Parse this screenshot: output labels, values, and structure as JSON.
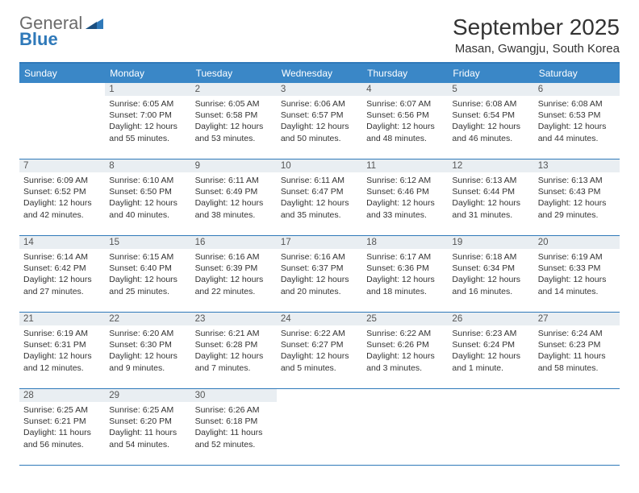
{
  "brand": {
    "word1": "General",
    "word2": "Blue"
  },
  "title": "September 2025",
  "location": "Masan, Gwangju, South Korea",
  "day_labels": [
    "Sunday",
    "Monday",
    "Tuesday",
    "Wednesday",
    "Thursday",
    "Friday",
    "Saturday"
  ],
  "colors": {
    "header_bg": "#3a87c7",
    "accent": "#2f79b9",
    "daynum_bg": "#e9eef2",
    "text": "#333333",
    "logo_gray": "#6b6b6b"
  },
  "font": {
    "title_size": 28,
    "location_size": 15,
    "header_size": 12,
    "body_size": 10.5
  },
  "layout": {
    "columns": 7,
    "start_offset": 1
  },
  "days": [
    {
      "n": "1",
      "sunrise": "Sunrise: 6:05 AM",
      "sunset": "Sunset: 7:00 PM",
      "daylight": "Daylight: 12 hours and 55 minutes."
    },
    {
      "n": "2",
      "sunrise": "Sunrise: 6:05 AM",
      "sunset": "Sunset: 6:58 PM",
      "daylight": "Daylight: 12 hours and 53 minutes."
    },
    {
      "n": "3",
      "sunrise": "Sunrise: 6:06 AM",
      "sunset": "Sunset: 6:57 PM",
      "daylight": "Daylight: 12 hours and 50 minutes."
    },
    {
      "n": "4",
      "sunrise": "Sunrise: 6:07 AM",
      "sunset": "Sunset: 6:56 PM",
      "daylight": "Daylight: 12 hours and 48 minutes."
    },
    {
      "n": "5",
      "sunrise": "Sunrise: 6:08 AM",
      "sunset": "Sunset: 6:54 PM",
      "daylight": "Daylight: 12 hours and 46 minutes."
    },
    {
      "n": "6",
      "sunrise": "Sunrise: 6:08 AM",
      "sunset": "Sunset: 6:53 PM",
      "daylight": "Daylight: 12 hours and 44 minutes."
    },
    {
      "n": "7",
      "sunrise": "Sunrise: 6:09 AM",
      "sunset": "Sunset: 6:52 PM",
      "daylight": "Daylight: 12 hours and 42 minutes."
    },
    {
      "n": "8",
      "sunrise": "Sunrise: 6:10 AM",
      "sunset": "Sunset: 6:50 PM",
      "daylight": "Daylight: 12 hours and 40 minutes."
    },
    {
      "n": "9",
      "sunrise": "Sunrise: 6:11 AM",
      "sunset": "Sunset: 6:49 PM",
      "daylight": "Daylight: 12 hours and 38 minutes."
    },
    {
      "n": "10",
      "sunrise": "Sunrise: 6:11 AM",
      "sunset": "Sunset: 6:47 PM",
      "daylight": "Daylight: 12 hours and 35 minutes."
    },
    {
      "n": "11",
      "sunrise": "Sunrise: 6:12 AM",
      "sunset": "Sunset: 6:46 PM",
      "daylight": "Daylight: 12 hours and 33 minutes."
    },
    {
      "n": "12",
      "sunrise": "Sunrise: 6:13 AM",
      "sunset": "Sunset: 6:44 PM",
      "daylight": "Daylight: 12 hours and 31 minutes."
    },
    {
      "n": "13",
      "sunrise": "Sunrise: 6:13 AM",
      "sunset": "Sunset: 6:43 PM",
      "daylight": "Daylight: 12 hours and 29 minutes."
    },
    {
      "n": "14",
      "sunrise": "Sunrise: 6:14 AM",
      "sunset": "Sunset: 6:42 PM",
      "daylight": "Daylight: 12 hours and 27 minutes."
    },
    {
      "n": "15",
      "sunrise": "Sunrise: 6:15 AM",
      "sunset": "Sunset: 6:40 PM",
      "daylight": "Daylight: 12 hours and 25 minutes."
    },
    {
      "n": "16",
      "sunrise": "Sunrise: 6:16 AM",
      "sunset": "Sunset: 6:39 PM",
      "daylight": "Daylight: 12 hours and 22 minutes."
    },
    {
      "n": "17",
      "sunrise": "Sunrise: 6:16 AM",
      "sunset": "Sunset: 6:37 PM",
      "daylight": "Daylight: 12 hours and 20 minutes."
    },
    {
      "n": "18",
      "sunrise": "Sunrise: 6:17 AM",
      "sunset": "Sunset: 6:36 PM",
      "daylight": "Daylight: 12 hours and 18 minutes."
    },
    {
      "n": "19",
      "sunrise": "Sunrise: 6:18 AM",
      "sunset": "Sunset: 6:34 PM",
      "daylight": "Daylight: 12 hours and 16 minutes."
    },
    {
      "n": "20",
      "sunrise": "Sunrise: 6:19 AM",
      "sunset": "Sunset: 6:33 PM",
      "daylight": "Daylight: 12 hours and 14 minutes."
    },
    {
      "n": "21",
      "sunrise": "Sunrise: 6:19 AM",
      "sunset": "Sunset: 6:31 PM",
      "daylight": "Daylight: 12 hours and 12 minutes."
    },
    {
      "n": "22",
      "sunrise": "Sunrise: 6:20 AM",
      "sunset": "Sunset: 6:30 PM",
      "daylight": "Daylight: 12 hours and 9 minutes."
    },
    {
      "n": "23",
      "sunrise": "Sunrise: 6:21 AM",
      "sunset": "Sunset: 6:28 PM",
      "daylight": "Daylight: 12 hours and 7 minutes."
    },
    {
      "n": "24",
      "sunrise": "Sunrise: 6:22 AM",
      "sunset": "Sunset: 6:27 PM",
      "daylight": "Daylight: 12 hours and 5 minutes."
    },
    {
      "n": "25",
      "sunrise": "Sunrise: 6:22 AM",
      "sunset": "Sunset: 6:26 PM",
      "daylight": "Daylight: 12 hours and 3 minutes."
    },
    {
      "n": "26",
      "sunrise": "Sunrise: 6:23 AM",
      "sunset": "Sunset: 6:24 PM",
      "daylight": "Daylight: 12 hours and 1 minute."
    },
    {
      "n": "27",
      "sunrise": "Sunrise: 6:24 AM",
      "sunset": "Sunset: 6:23 PM",
      "daylight": "Daylight: 11 hours and 58 minutes."
    },
    {
      "n": "28",
      "sunrise": "Sunrise: 6:25 AM",
      "sunset": "Sunset: 6:21 PM",
      "daylight": "Daylight: 11 hours and 56 minutes."
    },
    {
      "n": "29",
      "sunrise": "Sunrise: 6:25 AM",
      "sunset": "Sunset: 6:20 PM",
      "daylight": "Daylight: 11 hours and 54 minutes."
    },
    {
      "n": "30",
      "sunrise": "Sunrise: 6:26 AM",
      "sunset": "Sunset: 6:18 PM",
      "daylight": "Daylight: 11 hours and 52 minutes."
    }
  ]
}
